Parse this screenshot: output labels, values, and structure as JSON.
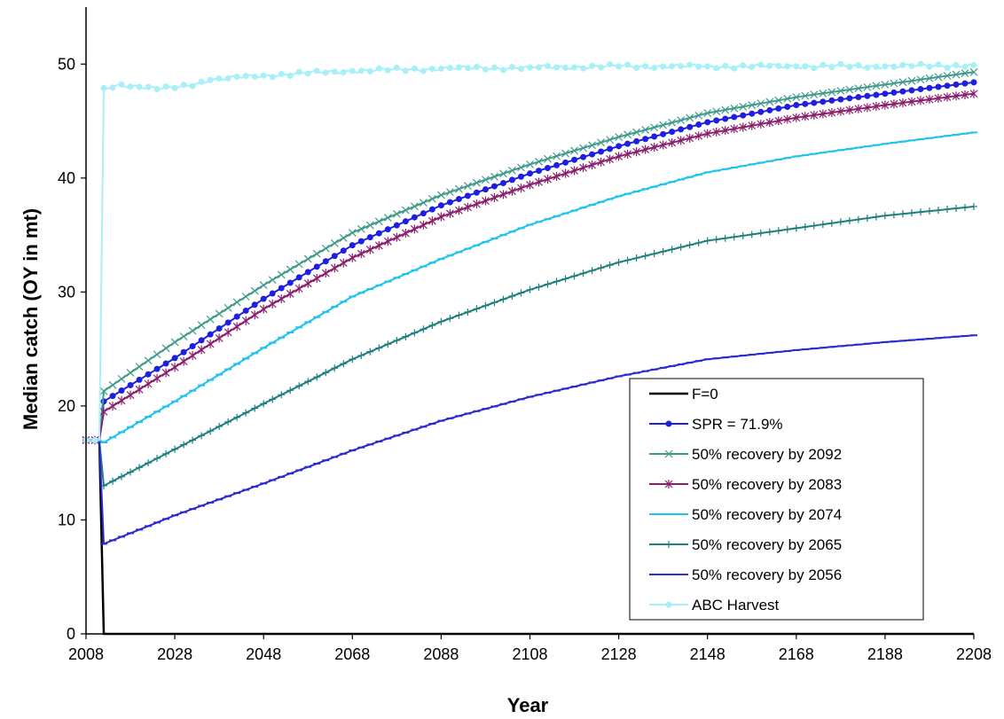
{
  "chart_data": {
    "type": "line",
    "title": "",
    "xlabel": "Year",
    "ylabel": "Median catch (OY in mt)",
    "xlim": [
      2008,
      2208
    ],
    "ylim": [
      0,
      55
    ],
    "xticks": [
      2008,
      2028,
      2048,
      2068,
      2088,
      2108,
      2128,
      2148,
      2168,
      2188,
      2208
    ],
    "yticks": [
      0,
      10,
      20,
      30,
      40,
      50
    ],
    "grid": false,
    "legend_position": "bottom-right",
    "series": [
      {
        "name": "F=0",
        "color": "#000000",
        "marker": "none",
        "points": [
          [
            2008,
            17
          ],
          [
            2009,
            17
          ],
          [
            2010,
            17
          ],
          [
            2011,
            17
          ],
          [
            2012,
            0
          ],
          [
            2208,
            0
          ]
        ]
      },
      {
        "name": "SPR = 71.9%",
        "color": "#1f1fe0",
        "marker": "circle",
        "points": [
          [
            2008,
            17
          ],
          [
            2009,
            17
          ],
          [
            2010,
            17
          ],
          [
            2011,
            17
          ],
          [
            2012,
            20.4
          ],
          [
            2028,
            24.2
          ],
          [
            2048,
            29.4
          ],
          [
            2068,
            34.1
          ],
          [
            2088,
            37.6
          ],
          [
            2108,
            40.4
          ],
          [
            2128,
            42.8
          ],
          [
            2148,
            44.9
          ],
          [
            2168,
            46.4
          ],
          [
            2188,
            47.4
          ],
          [
            2208,
            48.4
          ]
        ]
      },
      {
        "name": "50% recovery by 2092",
        "color": "#3f9a8a",
        "marker": "x",
        "points": [
          [
            2008,
            17
          ],
          [
            2009,
            17
          ],
          [
            2010,
            17
          ],
          [
            2011,
            17
          ],
          [
            2012,
            21.3
          ],
          [
            2028,
            25.6
          ],
          [
            2048,
            30.6
          ],
          [
            2068,
            35.2
          ],
          [
            2088,
            38.5
          ],
          [
            2108,
            41.2
          ],
          [
            2128,
            43.6
          ],
          [
            2148,
            45.7
          ],
          [
            2168,
            47.1
          ],
          [
            2188,
            48.2
          ],
          [
            2208,
            49.3
          ]
        ]
      },
      {
        "name": "50% recovery by 2083",
        "color": "#8b1f6e",
        "marker": "star",
        "points": [
          [
            2008,
            17
          ],
          [
            2009,
            17
          ],
          [
            2010,
            17
          ],
          [
            2011,
            17
          ],
          [
            2012,
            19.5
          ],
          [
            2028,
            23.4
          ],
          [
            2048,
            28.5
          ],
          [
            2068,
            33.0
          ],
          [
            2088,
            36.6
          ],
          [
            2108,
            39.4
          ],
          [
            2128,
            41.9
          ],
          [
            2148,
            43.9
          ],
          [
            2168,
            45.3
          ],
          [
            2188,
            46.4
          ],
          [
            2208,
            47.4
          ]
        ]
      },
      {
        "name": "50% recovery by 2074",
        "color": "#1ec3ee",
        "marker": "dash",
        "points": [
          [
            2008,
            17
          ],
          [
            2009,
            17
          ],
          [
            2010,
            17
          ],
          [
            2011,
            17
          ],
          [
            2012,
            16.8
          ],
          [
            2028,
            20.4
          ],
          [
            2048,
            25.1
          ],
          [
            2068,
            29.6
          ],
          [
            2088,
            32.9
          ],
          [
            2108,
            35.9
          ],
          [
            2128,
            38.4
          ],
          [
            2148,
            40.5
          ],
          [
            2168,
            41.9
          ],
          [
            2188,
            43.0
          ],
          [
            2208,
            44.0
          ]
        ]
      },
      {
        "name": "50% recovery by 2065",
        "color": "#1f7f7f",
        "marker": "plus",
        "points": [
          [
            2008,
            17
          ],
          [
            2009,
            17
          ],
          [
            2010,
            17
          ],
          [
            2011,
            17
          ],
          [
            2012,
            13.0
          ],
          [
            2028,
            16.2
          ],
          [
            2048,
            20.2
          ],
          [
            2068,
            24.1
          ],
          [
            2088,
            27.4
          ],
          [
            2108,
            30.2
          ],
          [
            2128,
            32.6
          ],
          [
            2148,
            34.5
          ],
          [
            2168,
            35.6
          ],
          [
            2188,
            36.7
          ],
          [
            2208,
            37.5
          ]
        ]
      },
      {
        "name": "50% recovery by 2056",
        "color": "#2b2bd0",
        "marker": "dash",
        "points": [
          [
            2008,
            17
          ],
          [
            2009,
            17
          ],
          [
            2010,
            17
          ],
          [
            2011,
            17
          ],
          [
            2012,
            7.9
          ],
          [
            2028,
            10.4
          ],
          [
            2048,
            13.2
          ],
          [
            2068,
            16.1
          ],
          [
            2088,
            18.7
          ],
          [
            2108,
            20.8
          ],
          [
            2128,
            22.6
          ],
          [
            2148,
            24.1
          ],
          [
            2168,
            24.9
          ],
          [
            2188,
            25.6
          ],
          [
            2208,
            26.2
          ]
        ]
      },
      {
        "name": "ABC Harvest",
        "color": "#a8f0f8",
        "marker": "circle",
        "points": [
          [
            2008,
            17
          ],
          [
            2009,
            17
          ],
          [
            2010,
            17
          ],
          [
            2011,
            17
          ],
          [
            2012,
            47.9
          ],
          [
            2016,
            48.2
          ],
          [
            2020,
            48.0
          ],
          [
            2024,
            47.8
          ],
          [
            2028,
            47.9
          ],
          [
            2036,
            48.6
          ],
          [
            2048,
            49.0
          ],
          [
            2068,
            49.4
          ],
          [
            2088,
            49.6
          ],
          [
            2108,
            49.7
          ],
          [
            2128,
            49.8
          ],
          [
            2148,
            49.8
          ],
          [
            2168,
            49.8
          ],
          [
            2188,
            49.8
          ],
          [
            2208,
            49.9
          ]
        ]
      }
    ]
  }
}
